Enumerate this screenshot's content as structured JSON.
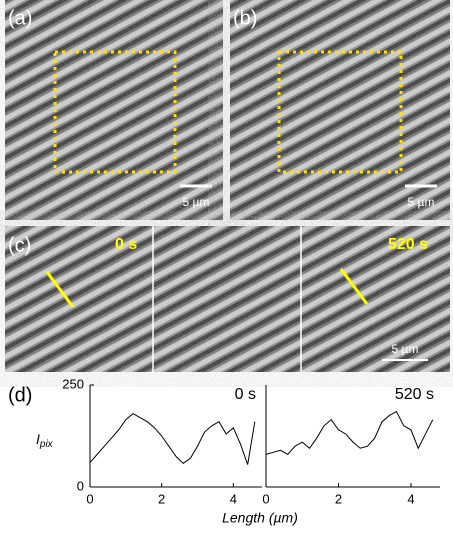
{
  "panels": {
    "a": {
      "label": "(a)",
      "scale_bar": "5 µm"
    },
    "b": {
      "label": "(b)",
      "scale_bar": "5 µm"
    },
    "c": {
      "label": "(c)",
      "time_start": "0 s",
      "time_end": "520 s",
      "scale_bar": "5 µm"
    },
    "d": {
      "label": "(d)"
    }
  },
  "chart_data": [
    {
      "type": "line",
      "title": "0 s",
      "x_label": "Length (µm)",
      "y_label": "I",
      "y_label_sub": "pix",
      "x": [
        0,
        0.2,
        0.4,
        0.6,
        0.8,
        1.0,
        1.2,
        1.4,
        1.6,
        1.8,
        2.0,
        2.2,
        2.4,
        2.6,
        2.8,
        3.0,
        3.2,
        3.4,
        3.6,
        3.8,
        4.0,
        4.2,
        4.4,
        4.6
      ],
      "values": [
        60,
        80,
        100,
        120,
        140,
        165,
        180,
        170,
        160,
        145,
        125,
        100,
        75,
        58,
        70,
        100,
        135,
        150,
        160,
        130,
        145,
        105,
        55,
        160
      ],
      "color": "#000000",
      "xlim": [
        0,
        4.8
      ],
      "xticks": [
        0,
        2,
        4
      ],
      "ylim": [
        0,
        250
      ],
      "yticks": [
        0,
        250
      ]
    },
    {
      "type": "line",
      "title": "520 s",
      "x": [
        0,
        0.2,
        0.4,
        0.6,
        0.8,
        1.0,
        1.2,
        1.4,
        1.6,
        1.8,
        2.0,
        2.2,
        2.4,
        2.6,
        2.8,
        3.0,
        3.2,
        3.4,
        3.6,
        3.8,
        4.0,
        4.2,
        4.4,
        4.6
      ],
      "values": [
        80,
        85,
        90,
        80,
        100,
        110,
        95,
        120,
        150,
        165,
        140,
        130,
        110,
        95,
        100,
        120,
        160,
        175,
        185,
        150,
        140,
        95,
        130,
        165
      ],
      "color": "#000000",
      "xlim": [
        0,
        4.8
      ],
      "xticks": [
        0,
        2,
        4
      ],
      "ylim": [
        0,
        250
      ]
    }
  ]
}
